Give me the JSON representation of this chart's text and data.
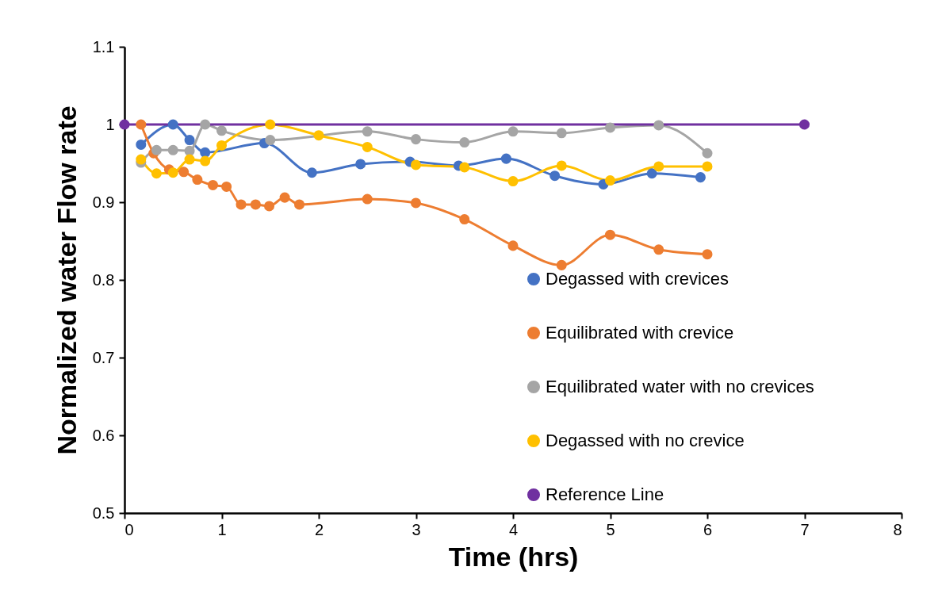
{
  "chart_data": {
    "type": "line",
    "xlabel": "Time (hrs)",
    "ylabel": "Normalized water Flow rate",
    "xlim": [
      0,
      8
    ],
    "xticks": [
      0,
      1,
      2,
      3,
      4,
      5,
      6,
      7,
      8
    ],
    "ylim": [
      0.5,
      1.1
    ],
    "yticks": [
      0.5,
      0.6,
      0.7,
      0.8,
      0.9,
      1,
      1.1
    ],
    "grid": false,
    "legend": "right",
    "marker": "circle",
    "line_style": "solid",
    "series": [
      {
        "name": "Degassed with crevices",
        "color": "#4472c4",
        "x": [
          0.17,
          0.5,
          0.67,
          0.83,
          1.44,
          1.93,
          2.43,
          2.94,
          3.44,
          3.93,
          4.43,
          4.93,
          5.43,
          5.93
        ],
        "values": [
          0.974,
          1.0,
          0.98,
          0.964,
          0.976,
          0.938,
          0.949,
          0.952,
          0.947,
          0.956,
          0.934,
          0.923,
          0.937,
          0.932
        ]
      },
      {
        "name": "Equilibrated with crevice",
        "color": "#ed7d31",
        "x": [
          0.17,
          0.3,
          0.46,
          0.61,
          0.75,
          0.91,
          1.05,
          1.2,
          1.35,
          1.49,
          1.65,
          1.8,
          2.5,
          3.0,
          3.5,
          4.0,
          4.5,
          5.0,
          5.5,
          6.0
        ],
        "values": [
          1.0,
          0.963,
          0.942,
          0.939,
          0.929,
          0.922,
          0.92,
          0.897,
          0.897,
          0.895,
          0.906,
          0.897,
          0.904,
          0.899,
          0.878,
          0.844,
          0.819,
          0.858,
          0.839,
          0.833
        ]
      },
      {
        "name": "Equilibrated water with no crevices",
        "color": "#a5a5a5",
        "x": [
          0.17,
          0.33,
          0.5,
          0.67,
          0.83,
          1.0,
          1.5,
          2.5,
          3.0,
          3.5,
          4.0,
          4.5,
          5.0,
          5.5,
          6.0
        ],
        "values": [
          0.951,
          0.967,
          0.967,
          0.966,
          1.0,
          0.992,
          0.98,
          0.991,
          0.981,
          0.977,
          0.991,
          0.989,
          0.996,
          0.999,
          0.963
        ]
      },
      {
        "name": "Degassed with no crevice",
        "color": "#ffc000",
        "x": [
          0.17,
          0.33,
          0.5,
          0.67,
          0.83,
          1.0,
          1.5,
          2.0,
          2.5,
          3.0,
          3.5,
          4.0,
          4.5,
          5.0,
          5.5,
          6.0
        ],
        "values": [
          0.955,
          0.937,
          0.938,
          0.955,
          0.953,
          0.973,
          1.0,
          0.986,
          0.971,
          0.948,
          0.945,
          0.927,
          0.947,
          0.928,
          0.946,
          0.946
        ]
      },
      {
        "name": "Reference Line",
        "color": "#7030a0",
        "x": [
          0,
          7
        ],
        "values": [
          1,
          1
        ]
      }
    ]
  }
}
